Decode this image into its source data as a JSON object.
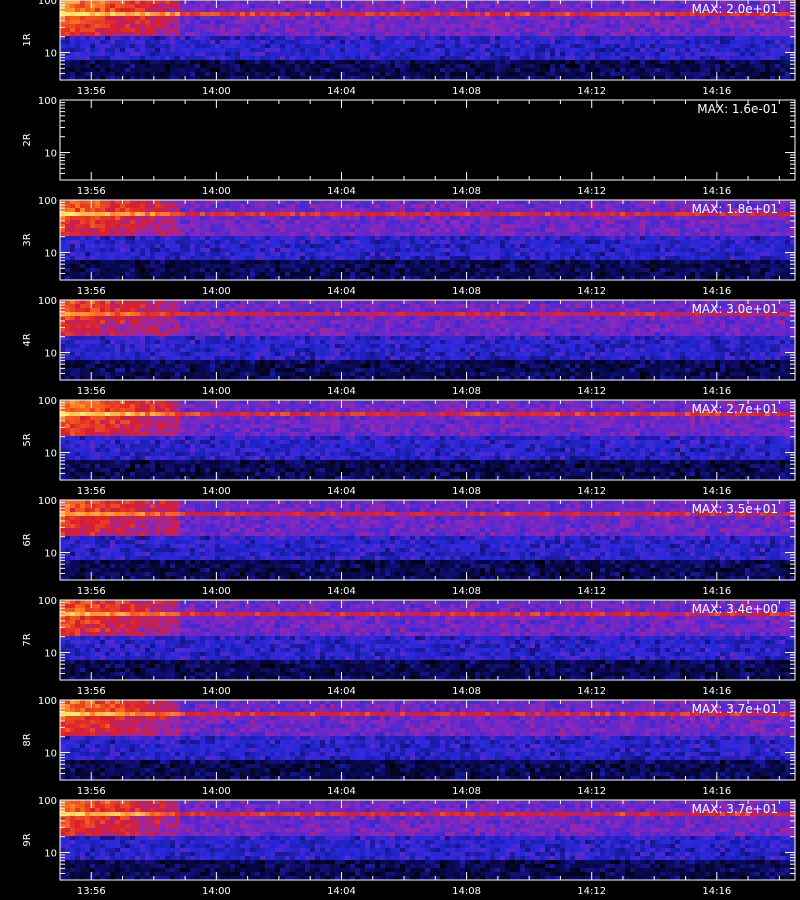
{
  "chart_data": {
    "type": "heatmap",
    "x_tick_labels": [
      "13:56",
      "14:00",
      "14:04",
      "14:08",
      "14:12",
      "14:16"
    ],
    "x_tick_minutes": [
      0,
      4,
      8,
      12,
      16,
      20
    ],
    "x_range_minutes": [
      -1,
      22.5
    ],
    "y_range": [
      3,
      100
    ],
    "y_scale": "log",
    "y_tick_labels": [
      "100",
      "10"
    ],
    "y_tick_values": [
      100,
      10
    ],
    "xlabel": "",
    "colors": {
      "background": "#000000",
      "axis": "#ffffff",
      "low": "#1a1acc",
      "mid": "#cc2020",
      "high": "#ffe060"
    },
    "panels": [
      {
        "label": "1R",
        "max_label": "MAX: 2.0e+01",
        "intensity": 0.95
      },
      {
        "label": "2R",
        "max_label": "MAX: 1.6e-01",
        "intensity": 0.0
      },
      {
        "label": "3R",
        "max_label": "MAX: 1.8e+01",
        "intensity": 0.85
      },
      {
        "label": "4R",
        "max_label": "MAX: 3.0e+01",
        "intensity": 0.7
      },
      {
        "label": "5R",
        "max_label": "MAX: 2.7e+01",
        "intensity": 0.9
      },
      {
        "label": "6R",
        "max_label": "MAX: 3.5e+01",
        "intensity": 0.75
      },
      {
        "label": "7R",
        "max_label": "MAX: 3.4e+00",
        "intensity": 0.8
      },
      {
        "label": "8R",
        "max_label": "MAX: 3.7e+01",
        "intensity": 0.85
      },
      {
        "label": "9R",
        "max_label": "MAX: 3.7e+01",
        "intensity": 0.85
      }
    ]
  }
}
